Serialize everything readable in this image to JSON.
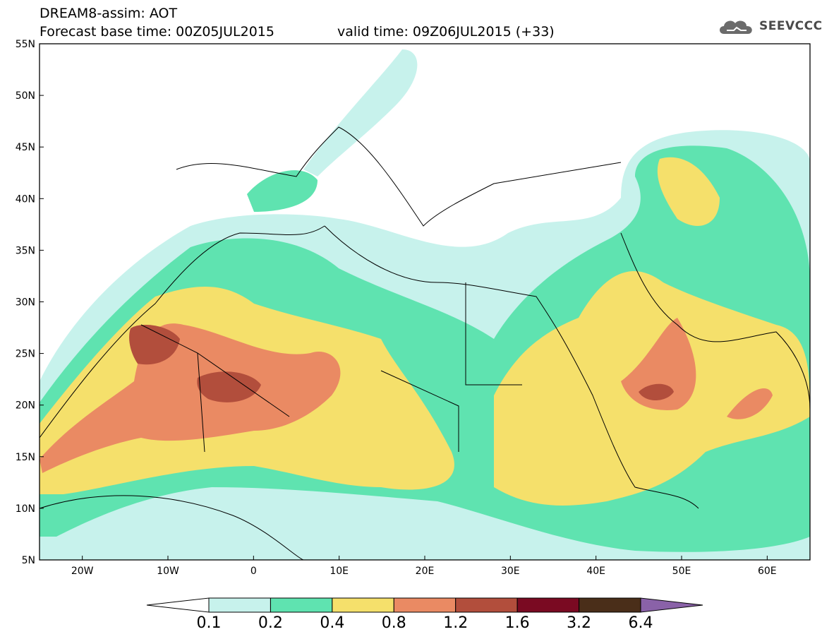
{
  "header": {
    "line1": "DREAM8-assim: AOT",
    "line2": "Forecast base time: 00Z05JUL2015",
    "valid": "valid time: 09Z06JUL2015 (+33)",
    "logo_text": "SEEVCCC"
  },
  "map": {
    "lon_range": [
      -25,
      65
    ],
    "lat_range": [
      5,
      55
    ],
    "lat_labels": [
      "55N",
      "50N",
      "45N",
      "40N",
      "35N",
      "30N",
      "25N",
      "20N",
      "15N",
      "10N",
      "5N"
    ],
    "lon_labels": [
      "20W",
      "10W",
      "0",
      "10E",
      "20E",
      "30E",
      "40E",
      "50E",
      "60E"
    ]
  },
  "colorbar": {
    "labels": [
      "0.1",
      "0.2",
      "0.4",
      "0.8",
      "1.2",
      "1.6",
      "3.2",
      "6.4"
    ],
    "colors": [
      "#c7f2ec",
      "#5fe3b0",
      "#f5e06b",
      "#ea8a63",
      "#b24e3c",
      "#7a0a22",
      "#4a2e19",
      "#8a62a8"
    ]
  }
}
